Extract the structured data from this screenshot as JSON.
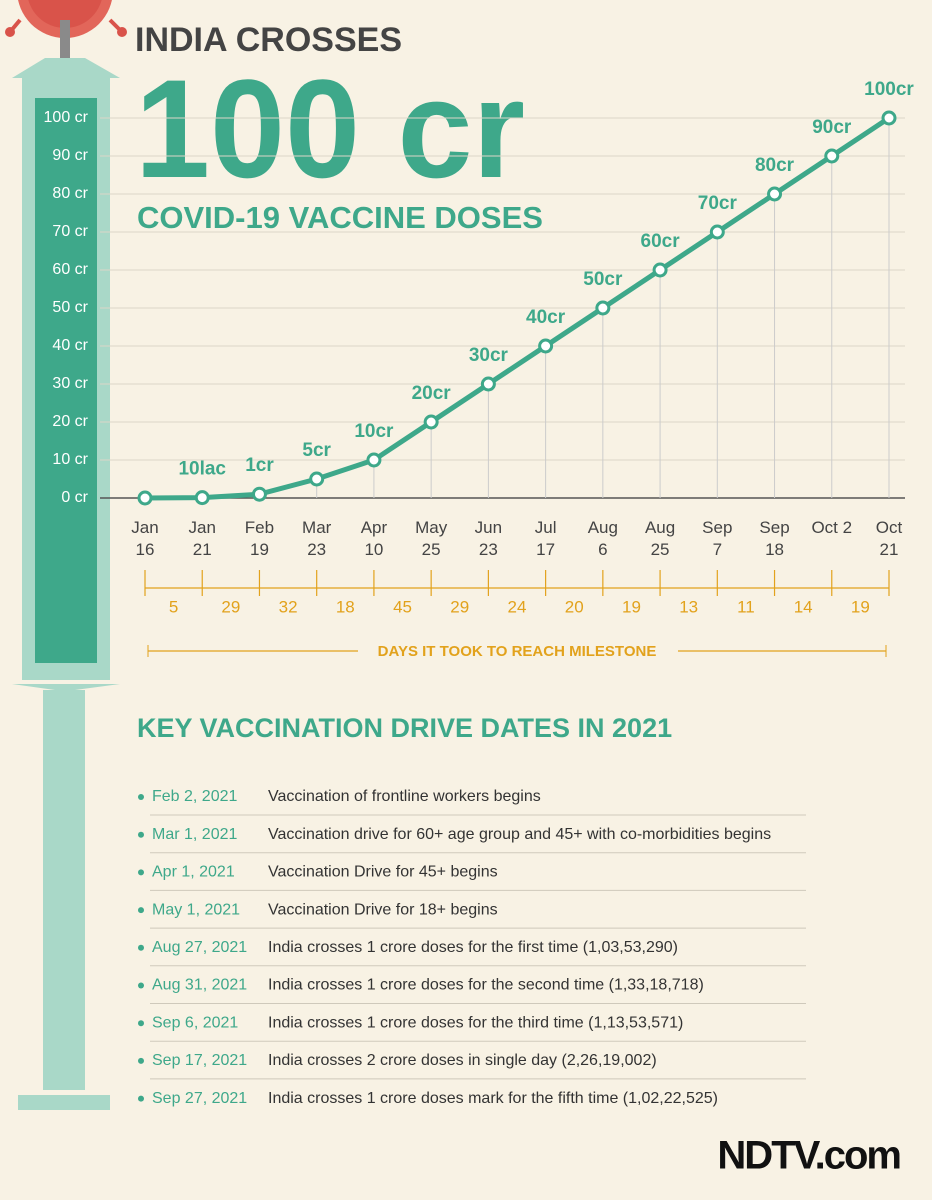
{
  "chart_data": {
    "type": "line",
    "title": "INDIA CROSSES",
    "headline": "100 cr",
    "subtitle": "COVID-19 VACCINE DOSES",
    "categories": [
      "Jan 16",
      "Jan 21",
      "Feb 19",
      "Mar 23",
      "Apr 10",
      "May 25",
      "Jun 23",
      "Jul 17",
      "Aug 6",
      "Aug 25",
      "Sep 7",
      "Sep 18",
      "Oct 2",
      "Oct 21"
    ],
    "values": [
      0,
      0.1,
      1,
      5,
      10,
      20,
      30,
      40,
      50,
      60,
      70,
      80,
      90,
      100
    ],
    "value_labels": [
      null,
      "10lac",
      "1cr",
      "5cr",
      "10cr",
      "20cr",
      "30cr",
      "40cr",
      "50cr",
      "60cr",
      "70cr",
      "80cr",
      "90cr",
      "100cr"
    ],
    "color": "#3ea88a",
    "ylim": [
      0,
      100
    ],
    "yticks": [
      {
        "value": 0,
        "label": "0 cr"
      },
      {
        "value": 10,
        "label": "10 cr"
      },
      {
        "value": 20,
        "label": "20 cr"
      },
      {
        "value": 30,
        "label": "30 cr"
      },
      {
        "value": 40,
        "label": "40 cr"
      },
      {
        "value": 50,
        "label": "50 cr"
      },
      {
        "value": 60,
        "label": "60 cr"
      },
      {
        "value": 70,
        "label": "70 cr"
      },
      {
        "value": 80,
        "label": "80 cr"
      },
      {
        "value": 90,
        "label": "90 cr"
      },
      {
        "value": 100,
        "label": "100 cr"
      }
    ],
    "grid": true,
    "days_to_milestone": [
      5,
      29,
      32,
      18,
      45,
      29,
      24,
      20,
      19,
      13,
      11,
      14,
      19
    ],
    "days_label": "DAYS IT TOOK TO REACH MILESTONE"
  },
  "key_dates": {
    "title": "KEY VACCINATION DRIVE DATES IN 2021",
    "items": [
      {
        "date": "Feb 2, 2021",
        "text": "Vaccination of frontline workers begins"
      },
      {
        "date": "Mar 1, 2021",
        "text": "Vaccination drive for 60+ age group and 45+ with co-morbidities begins"
      },
      {
        "date": "Apr 1, 2021",
        "text": "Vaccination Drive for 45+ begins"
      },
      {
        "date": "May 1, 2021",
        "text": "Vaccination Drive for 18+ begins"
      },
      {
        "date": "Aug 27, 2021",
        "text": "India crosses 1 crore doses for the first time (1,03,53,290)"
      },
      {
        "date": "Aug 31, 2021",
        "text": "India crosses 1 crore doses for the second time (1,33,18,718)"
      },
      {
        "date": "Sep 6, 2021",
        "text": "India crosses 1 crore doses for the third time (1,13,53,571)"
      },
      {
        "date": "Sep 17, 2021",
        "text": "India crosses 2 crore doses in single day (2,26,19,002)"
      },
      {
        "date": "Sep 27, 2021",
        "text": "India crosses 1 crore doses mark for the fifth time (1,02,22,525)"
      }
    ]
  },
  "footer": {
    "logo": "NDTV.com"
  }
}
